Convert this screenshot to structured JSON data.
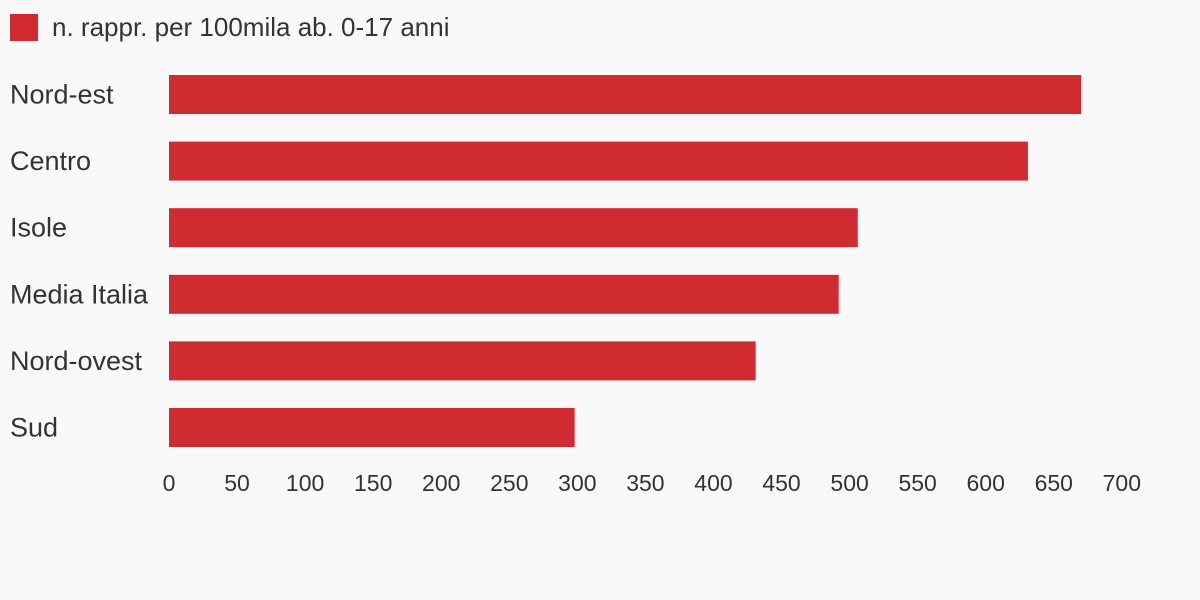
{
  "legend": {
    "label": "n. rappr. per 100mila ab. 0-17 anni",
    "color": "#d12b32"
  },
  "background_color": "#f9f9f9",
  "chart_data": {
    "type": "bar",
    "orientation": "horizontal",
    "categories": [
      "Nord-est",
      "Centro",
      "Isole",
      "Media Italia",
      "Nord-ovest",
      "Sud"
    ],
    "series": [
      {
        "name": "n. rappr. per 100mila ab. 0-17 anni",
        "color": "#d12b32",
        "values": [
          670,
          631,
          506,
          492,
          431,
          298
        ]
      }
    ],
    "xticks": [
      "0",
      "50",
      "100",
      "150",
      "200",
      "250",
      "300",
      "350",
      "400",
      "450",
      "500",
      "550",
      "600",
      "650",
      "700"
    ],
    "xlim": [
      0,
      700
    ],
    "grid": false,
    "legend_position": "top-left"
  }
}
